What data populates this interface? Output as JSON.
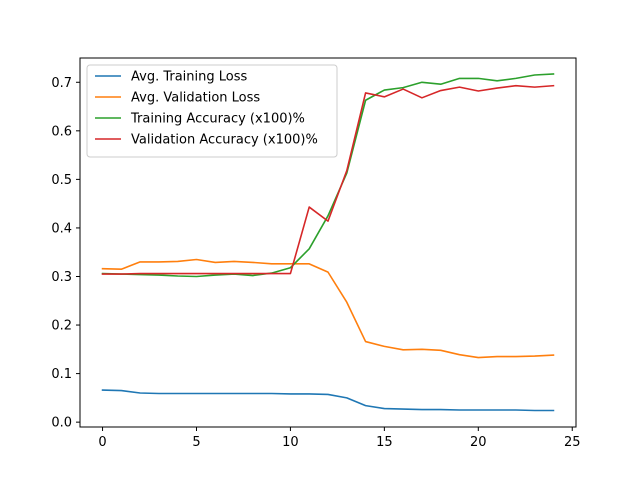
{
  "chart_data": {
    "type": "line",
    "title": "",
    "xlabel": "",
    "ylabel": "",
    "xlim": [
      -1.2,
      25.2
    ],
    "ylim": [
      -0.01,
      0.75
    ],
    "x_ticks": [
      0,
      5,
      10,
      15,
      20,
      25
    ],
    "y_ticks": [
      0.0,
      0.1,
      0.2,
      0.3,
      0.4,
      0.5,
      0.6,
      0.7
    ],
    "grid": false,
    "legend_position": "top-left",
    "x": [
      0,
      1,
      2,
      3,
      4,
      5,
      6,
      7,
      8,
      9,
      10,
      11,
      12,
      13,
      14,
      15,
      16,
      17,
      18,
      19,
      20,
      21,
      22,
      23,
      24
    ],
    "series": [
      {
        "name": "Avg. Training Loss",
        "color": "#1f77b4",
        "values": [
          0.066,
          0.065,
          0.06,
          0.059,
          0.059,
          0.059,
          0.059,
          0.059,
          0.059,
          0.059,
          0.058,
          0.058,
          0.057,
          0.05,
          0.034,
          0.028,
          0.027,
          0.026,
          0.026,
          0.025,
          0.025,
          0.025,
          0.025,
          0.024,
          0.024
        ]
      },
      {
        "name": "Avg. Validation Loss",
        "color": "#ff7f0e",
        "values": [
          0.316,
          0.315,
          0.33,
          0.33,
          0.331,
          0.335,
          0.329,
          0.331,
          0.329,
          0.326,
          0.326,
          0.326,
          0.309,
          0.247,
          0.166,
          0.156,
          0.149,
          0.15,
          0.148,
          0.139,
          0.133,
          0.135,
          0.135,
          0.136,
          0.138
        ]
      },
      {
        "name": "Training Accuracy (x100)%",
        "color": "#2ca02c",
        "values": [
          0.306,
          0.305,
          0.304,
          0.303,
          0.301,
          0.3,
          0.303,
          0.305,
          0.302,
          0.307,
          0.318,
          0.357,
          0.425,
          0.513,
          0.663,
          0.684,
          0.689,
          0.7,
          0.696,
          0.708,
          0.708,
          0.703,
          0.708,
          0.715,
          0.717
        ]
      },
      {
        "name": "Validation Accuracy (x100)%",
        "color": "#d62728",
        "values": [
          0.305,
          0.305,
          0.306,
          0.306,
          0.306,
          0.306,
          0.306,
          0.306,
          0.306,
          0.306,
          0.306,
          0.443,
          0.414,
          0.518,
          0.678,
          0.67,
          0.686,
          0.668,
          0.683,
          0.69,
          0.682,
          0.688,
          0.693,
          0.69,
          0.693
        ]
      }
    ]
  }
}
